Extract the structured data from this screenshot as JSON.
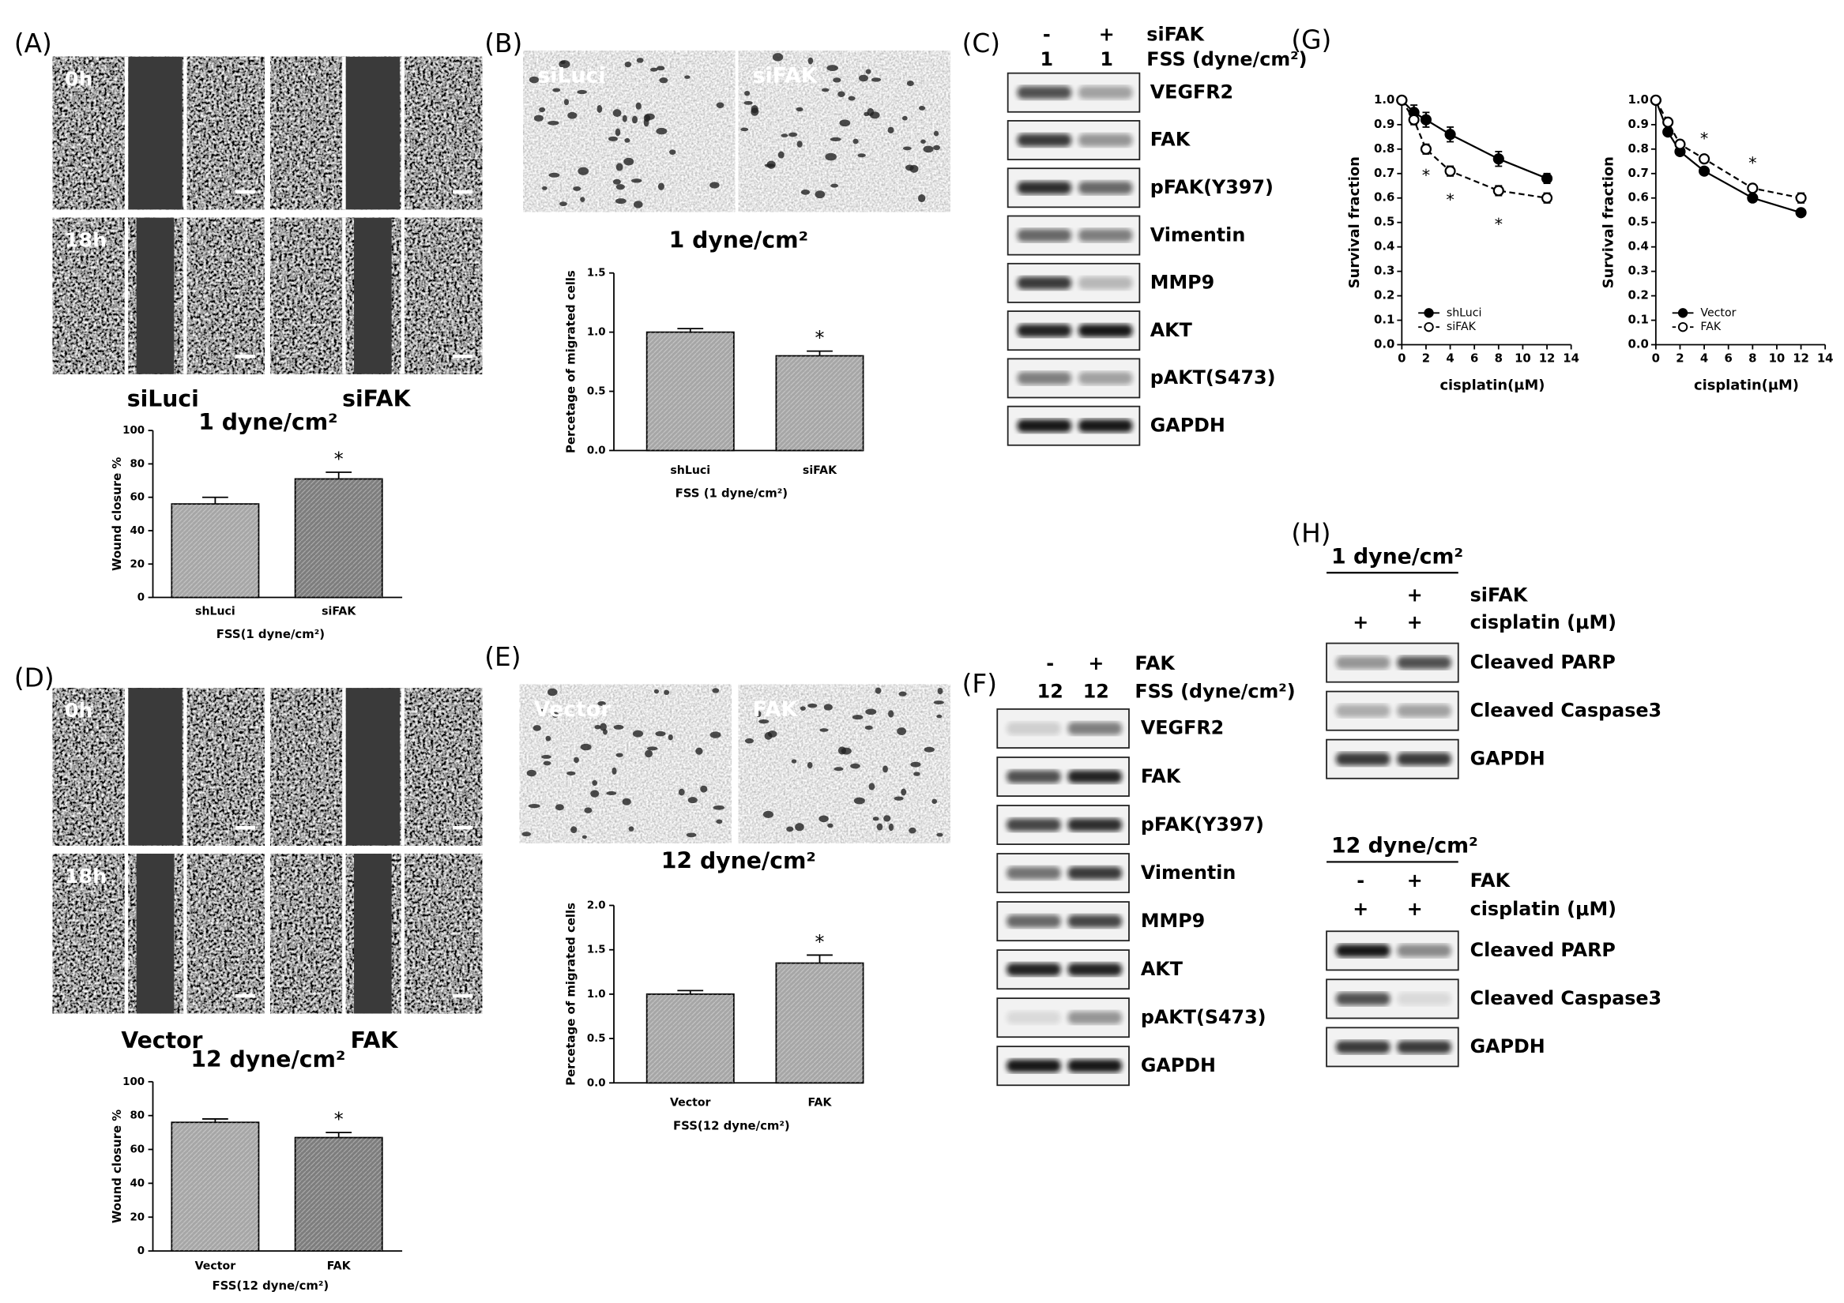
{
  "panel_labels": [
    "(A)",
    "(B)",
    "(C)",
    "(D)",
    "(E)",
    "(F)",
    "(G)",
    "(H)"
  ],
  "wound_images": [
    {
      "times": [
        "0h",
        "18h"
      ],
      "conditions": [
        "siLuci",
        "siFAK"
      ],
      "condition_label": "1 dyne/cm²"
    },
    {
      "times": [
        "0h",
        "18h"
      ],
      "conditions": [
        "Vector",
        "FAK"
      ],
      "condition_label": "12 dyne/cm²"
    }
  ],
  "transwell_images": [
    {
      "conditions": [
        "siLuci",
        "siFAK"
      ],
      "condition_label": "1 dyne/cm²"
    },
    {
      "conditions": [
        "Vector",
        "FAK"
      ],
      "condition_label": "12 dyne/cm²"
    }
  ],
  "blots": [
    {
      "rows": [
        {
          "cells": [
            "-",
            "+"
          ],
          "label": "siFAK"
        },
        {
          "cells": [
            "1",
            "1"
          ],
          "label": "FSS (dyne/cm²)"
        }
      ],
      "bands": [
        "VEGFR2",
        "FAK",
        "pFAK(Y397)",
        "Vimentin",
        "MMP9",
        "AKT",
        "pAKT(S473)",
        "GAPDH"
      ]
    },
    {
      "rows": [
        {
          "cells": [
            "-",
            "+"
          ],
          "label": "FAK"
        },
        {
          "cells": [
            "12",
            "12"
          ],
          "label": "FSS (dyne/cm²)"
        }
      ],
      "bands": [
        "VEGFR2",
        "FAK",
        "pFAK(Y397)",
        "Vimentin",
        "MMP9",
        "AKT",
        "pAKT(S473)",
        "GAPDH"
      ]
    },
    {
      "title": "1 dyne/cm²",
      "rows": [
        {
          "cells": [
            null,
            "+"
          ],
          "label": "siFAK"
        },
        {
          "cells": [
            "+",
            "+"
          ],
          "label": "cisplatin (μM)"
        }
      ],
      "bands": [
        "Cleaved PARP",
        "Cleaved Caspase3",
        "GAPDH"
      ]
    },
    {
      "title": "12 dyne/cm²",
      "rows": [
        {
          "cells": [
            "-",
            "+"
          ],
          "label": "FAK"
        },
        {
          "cells": [
            "+",
            "+"
          ],
          "label": "cisplatin (μM)"
        }
      ],
      "bands": [
        "Cleaved PARP",
        "Cleaved Caspase3",
        "GAPDH"
      ]
    }
  ],
  "chart_data": [
    {
      "type": "bar",
      "categories": [
        "shLuci",
        "siFAK"
      ],
      "values": [
        56,
        71
      ],
      "errors": [
        4,
        4
      ],
      "ylim": [
        0,
        100
      ],
      "yticks": [
        0,
        20,
        40,
        60,
        80,
        100
      ],
      "ylabel": "Wound closure %",
      "xlabel": "FSS(1 dyne/cm²)",
      "annotation": "*",
      "colors": [
        "#a6a6a6",
        "#7d7d7d"
      ]
    },
    {
      "type": "bar",
      "categories": [
        "shLuci",
        "siFAK"
      ],
      "values": [
        1.0,
        0.8
      ],
      "errors": [
        0.03,
        0.04
      ],
      "ylim": [
        0,
        1.5
      ],
      "yticks": [
        {
          "value": 0,
          "label": "0.0"
        },
        0.5,
        {
          "value": 1,
          "label": "1.0"
        },
        1.5
      ],
      "ylabel": "Percetage of migrated cells",
      "xlabel": "FSS (1 dyne/cm²)",
      "annotation": "*",
      "colors": [
        "#a6a6a6",
        "#a6a6a6"
      ]
    },
    {
      "type": "bar",
      "categories": [
        "Vector",
        "FAK"
      ],
      "values": [
        76,
        67
      ],
      "errors": [
        2,
        3
      ],
      "ylim": [
        0,
        100
      ],
      "yticks": [
        0,
        20,
        40,
        60,
        80,
        100
      ],
      "ylabel": "Wound closure %",
      "xlabel": "FSS(12 dyne/cm²)",
      "annotation": "*",
      "colors": [
        "#a6a6a6",
        "#7d7d7d"
      ]
    },
    {
      "type": "bar",
      "categories": [
        "Vector",
        "FAK"
      ],
      "values": [
        1.0,
        1.35
      ],
      "errors": [
        0.04,
        0.09
      ],
      "ylim": [
        0,
        2
      ],
      "yticks": [
        {
          "value": 0,
          "label": "0.0"
        },
        0.5,
        {
          "value": 1,
          "label": "1.0"
        },
        1.5,
        {
          "value": 2,
          "label": "2.0"
        }
      ],
      "ylabel": "Percetage of migrated cells",
      "xlabel": "FSS(12 dyne/cm²)",
      "annotation": "*",
      "colors": [
        "#a6a6a6",
        "#a6a6a6"
      ]
    },
    {
      "type": "line",
      "x": [
        0,
        1,
        2,
        4,
        8,
        12
      ],
      "series": [
        {
          "name": "shLuci",
          "color": "#000000",
          "marker_fill": "#000000",
          "dashed": false,
          "values": [
            1.0,
            0.95,
            0.92,
            0.86,
            0.76,
            0.68
          ],
          "errors": [
            0.01,
            0.03,
            0.03,
            0.03,
            0.03,
            0.02
          ]
        },
        {
          "name": "siFAK",
          "color": "#000000",
          "marker_fill": "#ffffff",
          "dashed": true,
          "values": [
            1.0,
            0.92,
            0.8,
            0.71,
            0.63,
            0.6
          ],
          "errors": [
            0.01,
            0.02,
            0.02,
            0.02,
            0.02,
            0.02
          ]
        }
      ],
      "xlim": [
        0,
        14
      ],
      "xticks": [
        0,
        2,
        4,
        6,
        8,
        10,
        12,
        14
      ],
      "ylim": [
        0,
        1
      ],
      "yticks": [
        {
          "value": 0,
          "label": "0.0"
        },
        0.1,
        0.2,
        0.3,
        0.4,
        0.5,
        0.6,
        0.7,
        0.8,
        0.9,
        {
          "value": 1,
          "label": "1.0"
        }
      ],
      "xlabel": "cisplatin(μM)",
      "ylabel": "Survival fraction",
      "legend": "lower left",
      "annotations": [
        {
          "text": "*",
          "x": 2,
          "y": 0.69
        },
        {
          "text": "*",
          "x": 4,
          "y": 0.59
        },
        {
          "text": "*",
          "x": 8,
          "y": 0.49
        }
      ]
    },
    {
      "type": "line",
      "x": [
        0,
        1,
        2,
        4,
        8,
        12
      ],
      "series": [
        {
          "name": "Vector",
          "color": "#000000",
          "marker_fill": "#000000",
          "dashed": false,
          "values": [
            1.0,
            0.87,
            0.79,
            0.71,
            0.6,
            0.54
          ],
          "errors": [
            0.01,
            0.01,
            0.01,
            0.01,
            0.01,
            0.01
          ]
        },
        {
          "name": "FAK",
          "color": "#000000",
          "marker_fill": "#ffffff",
          "dashed": true,
          "values": [
            1.0,
            0.91,
            0.82,
            0.76,
            0.64,
            0.6
          ],
          "errors": [
            0.01,
            0.01,
            0.01,
            0.01,
            0.01,
            0.02
          ]
        }
      ],
      "xlim": [
        0,
        14
      ],
      "xticks": [
        0,
        2,
        4,
        6,
        8,
        10,
        12,
        14
      ],
      "ylim": [
        0,
        1
      ],
      "yticks": [
        {
          "value": 0,
          "label": "0.0"
        },
        0.1,
        0.2,
        0.3,
        0.4,
        0.5,
        0.6,
        0.7,
        0.8,
        0.9,
        {
          "value": 1,
          "label": "1.0"
        }
      ],
      "xlabel": "cisplatin(μM)",
      "ylabel": "Survival fraction",
      "legend": "lower left",
      "annotations": [
        {
          "text": "*",
          "x": 4,
          "y": 0.84
        },
        {
          "text": "*",
          "x": 8,
          "y": 0.74
        }
      ]
    }
  ]
}
